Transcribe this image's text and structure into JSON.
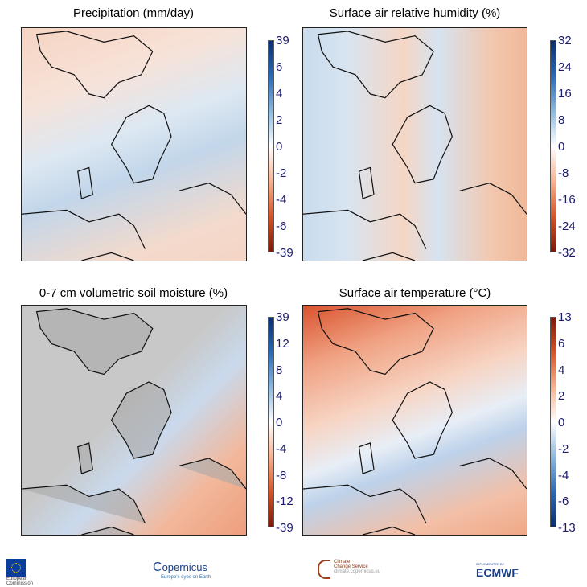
{
  "panels": [
    {
      "title": "Precipitation (mm/day)",
      "ticks": [
        "39",
        "6",
        "4",
        "2",
        "0",
        "-2",
        "-4",
        "-6",
        "-39"
      ],
      "colors": [
        "#0b2f6e",
        "#2e69b0",
        "#8eb8dc",
        "#ffffff",
        "#f4b393",
        "#d3542a",
        "#7a1a0a"
      ],
      "background": "linear-gradient(160deg,#f6d4c2 0%,#f7e2d8 25%,#dde8f2 45%,#c2d6ea 60%,#f3dacc 85%,#f5d5c5 100%)",
      "land_mask": false
    },
    {
      "title": "Surface air relative humidity (%)",
      "ticks": [
        "32",
        "24",
        "16",
        "8",
        "0",
        "-8",
        "-16",
        "-24",
        "-32"
      ],
      "colors": [
        "#0b2f6e",
        "#2e69b0",
        "#8eb8dc",
        "#ffffff",
        "#f4b393",
        "#d3542a",
        "#7a1a0a"
      ],
      "background": "linear-gradient(90deg,#c9dced 0%,#d8e4f0 20%,#f5d6c4 45%,#d6e3f0 60%,#f3c7ae 85%,#efb899 100%)",
      "land_mask": false
    },
    {
      "title": "0-7 cm volumetric soil moisture (%)",
      "ticks": [
        "39",
        "12",
        "8",
        "4",
        "0",
        "-4",
        "-8",
        "-12",
        "-39"
      ],
      "colors": [
        "#0b2f6e",
        "#2e69b0",
        "#8eb8dc",
        "#ffffff",
        "#f4b393",
        "#d3542a",
        "#7a1a0a"
      ],
      "background": "linear-gradient(135deg,#c8c8c8 0%,#c8c8c8 45%,#c9d9ec 60%,#f2b89c 80%,#ee9e7c 100%)",
      "land_mask": true
    },
    {
      "title": "Surface air temperature (°C)",
      "ticks": [
        "13",
        "6",
        "4",
        "2",
        "0",
        "-2",
        "-4",
        "-6",
        "-13"
      ],
      "colors": [
        "#7a1a0a",
        "#d3542a",
        "#f4b393",
        "#ffffff",
        "#8eb8dc",
        "#2e69b0",
        "#0b2f6e"
      ],
      "background": "linear-gradient(160deg,#d9532e 0%,#f0a283 20%,#f7d4c3 40%,#e8eef6 55%,#bdd2ea 65%,#f3bfa6 85%,#efa887 100%)",
      "land_mask": false
    }
  ],
  "logos": {
    "ec": [
      "European",
      "Commission"
    ],
    "copernicus": {
      "name": "opernicus",
      "tagline": "Europe's eyes on Earth"
    },
    "c3s": {
      "line1": "Climate",
      "line2": "Change Service",
      "url": "climate.copernicus.eu"
    },
    "ecmwf": {
      "prefix": "IMPLEMENTED BY",
      "name": "ECMWF"
    }
  }
}
